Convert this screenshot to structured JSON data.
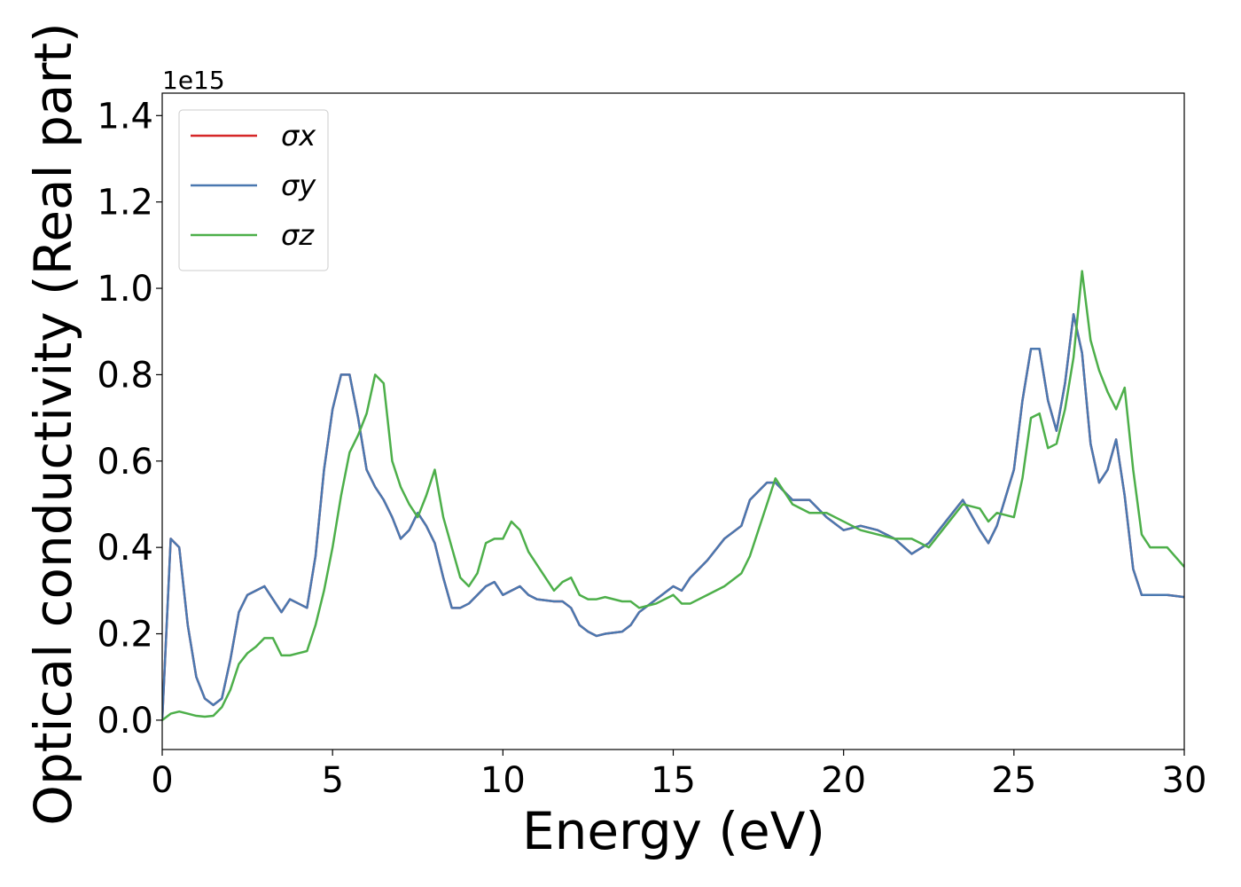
{
  "chart_data": {
    "type": "line",
    "xlabel": "Energy (eV)",
    "ylabel": "Optical conductivity (Real part)",
    "offset_text": "1e15",
    "xlim": [
      0,
      30
    ],
    "xticks": [
      0,
      5,
      10,
      15,
      20,
      25,
      30
    ],
    "ylim": [
      -0.068,
      1.452
    ],
    "yticks": [
      {
        "value": 0,
        "label": "0.0"
      },
      0.2,
      0.4,
      0.6,
      0.8,
      {
        "value": 1,
        "label": "1.0"
      },
      1.2,
      1.4
    ],
    "legend": "upper left",
    "grid": false,
    "x": [
      0,
      0.25,
      0.5,
      0.75,
      1,
      1.25,
      1.5,
      1.75,
      2,
      2.25,
      2.5,
      2.75,
      3,
      3.25,
      3.5,
      3.75,
      4,
      4.25,
      4.5,
      4.75,
      5,
      5.25,
      5.5,
      5.75,
      6,
      6.25,
      6.5,
      6.75,
      7,
      7.25,
      7.5,
      7.75,
      8,
      8.25,
      8.5,
      8.75,
      9,
      9.25,
      9.5,
      9.75,
      10,
      10.25,
      10.5,
      10.75,
      11,
      11.5,
      11.75,
      12,
      12.25,
      12.5,
      12.75,
      13,
      13.5,
      13.75,
      14,
      14.5,
      15,
      15.25,
      15.5,
      16,
      16.5,
      17,
      17.25,
      17.75,
      18,
      18.5,
      19,
      19.5,
      20,
      20.5,
      21,
      21.5,
      22,
      22.5,
      23,
      23.5,
      24,
      24.25,
      24.5,
      25,
      25.25,
      25.5,
      25.75,
      26,
      26.25,
      26.5,
      26.75,
      27,
      27.25,
      27.5,
      27.75,
      28,
      28.25,
      28.5,
      28.75,
      29,
      29.5,
      30
    ],
    "series": [
      {
        "name": "σx",
        "color": "#d62728",
        "values": [
          0,
          0.42,
          0.4,
          0.22,
          0.1,
          0.05,
          0.035,
          0.05,
          0.14,
          0.25,
          0.29,
          0.3,
          0.31,
          0.28,
          0.25,
          0.28,
          0.27,
          0.26,
          0.38,
          0.58,
          0.72,
          0.8,
          0.8,
          0.7,
          0.58,
          0.54,
          0.51,
          0.47,
          0.42,
          0.44,
          0.48,
          0.45,
          0.41,
          0.33,
          0.26,
          0.26,
          0.27,
          0.29,
          0.31,
          0.32,
          0.29,
          0.3,
          0.31,
          0.29,
          0.28,
          0.275,
          0.275,
          0.26,
          0.22,
          0.205,
          0.195,
          0.2,
          0.205,
          0.22,
          0.25,
          0.28,
          0.31,
          0.3,
          0.33,
          0.37,
          0.42,
          0.45,
          0.51,
          0.55,
          0.55,
          0.51,
          0.51,
          0.47,
          0.44,
          0.45,
          0.44,
          0.42,
          0.385,
          0.41,
          0.46,
          0.51,
          0.44,
          0.41,
          0.45,
          0.58,
          0.74,
          0.86,
          0.86,
          0.74,
          0.67,
          0.78,
          0.94,
          0.85,
          0.64,
          0.55,
          0.58,
          0.65,
          0.52,
          0.35,
          0.29,
          0.29,
          0.29,
          0.285
        ]
      },
      {
        "name": "σy",
        "color": "#4a78b0",
        "values": [
          0,
          0.42,
          0.4,
          0.22,
          0.1,
          0.05,
          0.035,
          0.05,
          0.14,
          0.25,
          0.29,
          0.3,
          0.31,
          0.28,
          0.25,
          0.28,
          0.27,
          0.26,
          0.38,
          0.58,
          0.72,
          0.8,
          0.8,
          0.7,
          0.58,
          0.54,
          0.51,
          0.47,
          0.42,
          0.44,
          0.48,
          0.45,
          0.41,
          0.33,
          0.26,
          0.26,
          0.27,
          0.29,
          0.31,
          0.32,
          0.29,
          0.3,
          0.31,
          0.29,
          0.28,
          0.275,
          0.275,
          0.26,
          0.22,
          0.205,
          0.195,
          0.2,
          0.205,
          0.22,
          0.25,
          0.28,
          0.31,
          0.3,
          0.33,
          0.37,
          0.42,
          0.45,
          0.51,
          0.55,
          0.55,
          0.51,
          0.51,
          0.47,
          0.44,
          0.45,
          0.44,
          0.42,
          0.385,
          0.41,
          0.46,
          0.51,
          0.44,
          0.41,
          0.45,
          0.58,
          0.74,
          0.86,
          0.86,
          0.74,
          0.67,
          0.78,
          0.94,
          0.85,
          0.64,
          0.55,
          0.58,
          0.65,
          0.52,
          0.35,
          0.29,
          0.29,
          0.29,
          0.285
        ]
      },
      {
        "name": "σz",
        "color": "#4daf4a",
        "values": [
          0,
          0.015,
          0.02,
          0.015,
          0.01,
          0.008,
          0.01,
          0.03,
          0.07,
          0.13,
          0.155,
          0.17,
          0.19,
          0.19,
          0.15,
          0.15,
          0.155,
          0.16,
          0.22,
          0.3,
          0.4,
          0.52,
          0.62,
          0.66,
          0.71,
          0.8,
          0.78,
          0.6,
          0.54,
          0.5,
          0.47,
          0.52,
          0.58,
          0.47,
          0.4,
          0.33,
          0.31,
          0.34,
          0.41,
          0.42,
          0.42,
          0.46,
          0.44,
          0.39,
          0.36,
          0.3,
          0.32,
          0.33,
          0.29,
          0.28,
          0.28,
          0.285,
          0.275,
          0.275,
          0.26,
          0.27,
          0.29,
          0.27,
          0.27,
          0.29,
          0.31,
          0.34,
          0.38,
          0.5,
          0.56,
          0.5,
          0.48,
          0.48,
          0.46,
          0.44,
          0.43,
          0.42,
          0.42,
          0.4,
          0.45,
          0.5,
          0.49,
          0.46,
          0.48,
          0.47,
          0.56,
          0.7,
          0.71,
          0.63,
          0.64,
          0.72,
          0.84,
          1.04,
          0.88,
          0.81,
          0.76,
          0.72,
          0.77,
          0.58,
          0.43,
          0.4,
          0.4,
          0.355
        ]
      }
    ]
  }
}
